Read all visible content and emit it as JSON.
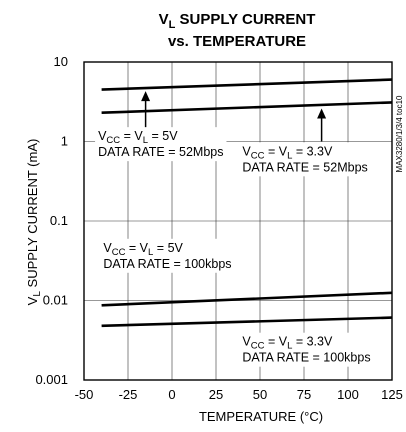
{
  "chart_data": {
    "type": "line",
    "title": {
      "line1_main": "V",
      "line1_sub": "L",
      "line1_rest": " SUPPLY CURRENT",
      "line2": "vs. TEMPERATURE"
    },
    "xlabel": "TEMPERATURE (°C)",
    "ylabel": {
      "main": "V",
      "sub": "L",
      "rest": " SUPPLY CURRENT (mA)"
    },
    "x_ticks": [
      "-50",
      "-25",
      "0",
      "25",
      "50",
      "75",
      "100",
      "125"
    ],
    "y_ticks": [
      "10",
      "1",
      "0.1",
      "0.01",
      "0.001"
    ],
    "xlim": [
      -50,
      125
    ],
    "ylim": [
      0.001,
      10
    ],
    "y_scale": "log",
    "grid": true,
    "side_code": "MAX3280/1/3/4 toc10",
    "series": [
      {
        "x": [
          -40,
          125
        ],
        "y": [
          4.5,
          6.0
        ]
      },
      {
        "x": [
          -40,
          125
        ],
        "y": [
          2.3,
          3.1
        ]
      },
      {
        "x": [
          -40,
          125
        ],
        "y": [
          0.0087,
          0.0125
        ]
      },
      {
        "x": [
          -40,
          125
        ],
        "y": [
          0.0048,
          0.0061
        ]
      }
    ],
    "annotations": [
      {
        "l1": [
          "V",
          "CC",
          " = V",
          "L",
          " = 5V"
        ],
        "l2": "DATA RATE = 52Mbps",
        "anchor_x": -42,
        "anchor_y": 1.04,
        "arrow": {
          "x": -15,
          "from_y": 1.5,
          "to_y": 4.3
        }
      },
      {
        "l1": [
          "V",
          "CC",
          " = V",
          "L",
          " = 3.3V"
        ],
        "l2": "DATA RATE = 52Mbps",
        "anchor_x": 40,
        "anchor_y": 0.67,
        "arrow": {
          "x": 85,
          "from_y": 1.0,
          "to_y": 2.6
        }
      },
      {
        "l1": [
          "V",
          "CC",
          " = V",
          "L",
          " = 5V"
        ],
        "l2": "DATA RATE = 100kbps",
        "anchor_x": -39,
        "anchor_y": 0.041
      },
      {
        "l1": [
          "V",
          "CC",
          " = V",
          "L",
          " = 3.3V"
        ],
        "l2": "DATA RATE = 100kbps",
        "anchor_x": 40,
        "anchor_y": 0.0027
      }
    ]
  }
}
